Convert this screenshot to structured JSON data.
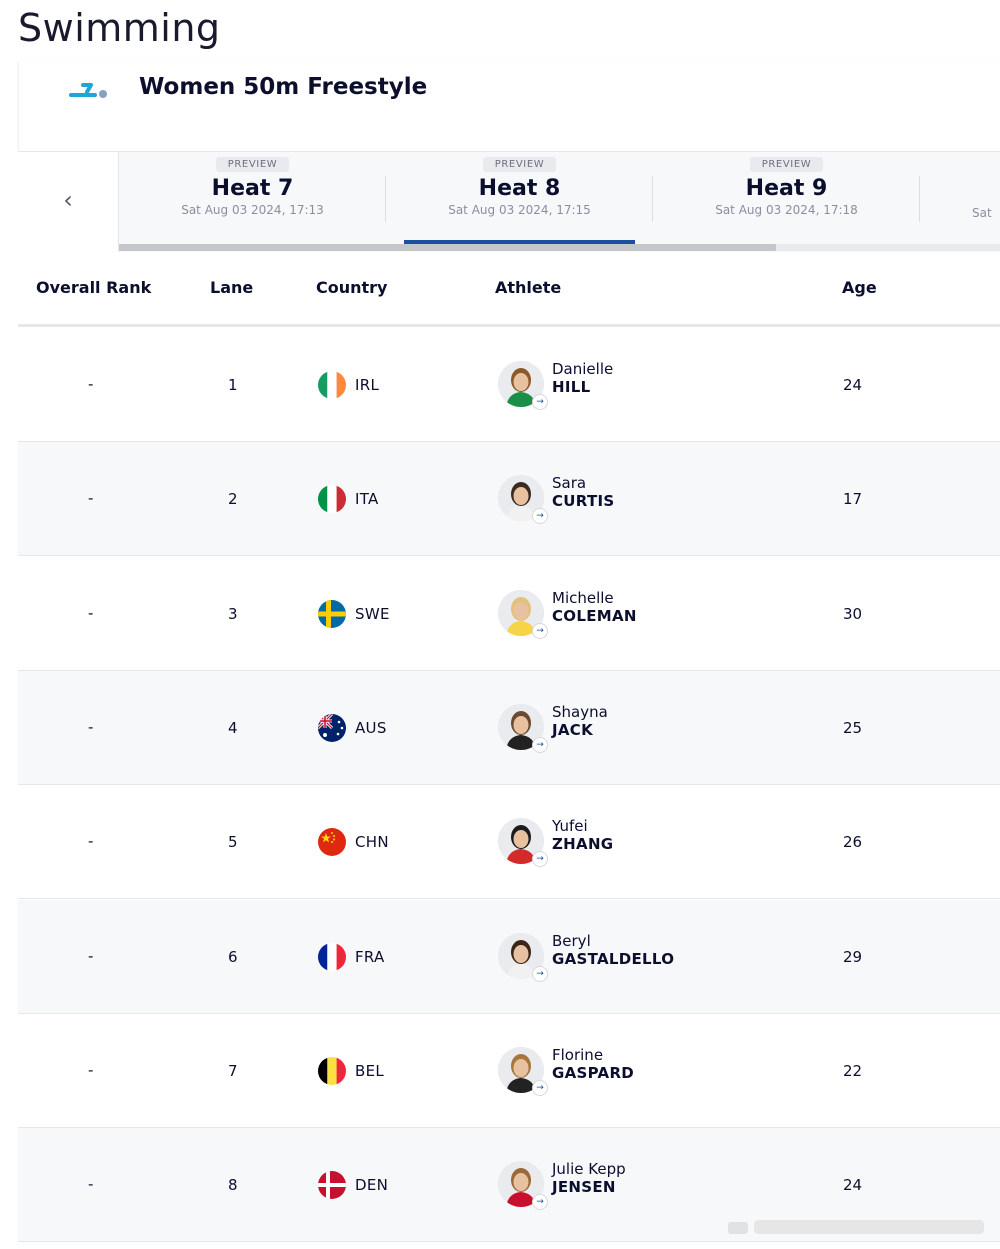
{
  "page": {
    "title": "Swimming"
  },
  "event": {
    "name": "Women 50m Freestyle",
    "icon": "swimming-icon"
  },
  "heats": {
    "prev_icon": "chevron-left-icon",
    "items": [
      {
        "badge": "PREVIEW",
        "name": "Heat 7",
        "date": "Sat Aug 03 2024, 17:13"
      },
      {
        "badge": "PREVIEW",
        "name": "Heat 8",
        "date": "Sat Aug 03 2024, 17:15",
        "active": true
      },
      {
        "badge": "PREVIEW",
        "name": "Heat 9",
        "date": "Sat Aug 03 2024, 17:18"
      },
      {
        "badge": "",
        "name": "",
        "date": "Sat"
      }
    ],
    "scroll_fraction": 0.73
  },
  "table": {
    "headers": {
      "rank": "Overall Rank",
      "lane": "Lane",
      "country": "Country",
      "athlete": "Athlete",
      "age": "Age"
    },
    "rows": [
      {
        "rank": "-",
        "lane": "1",
        "country": "IRL",
        "flag": "ireland",
        "first": "Danielle",
        "last": "HILL",
        "age": "24"
      },
      {
        "rank": "-",
        "lane": "2",
        "country": "ITA",
        "flag": "italy",
        "first": "Sara",
        "last": "CURTIS",
        "age": "17"
      },
      {
        "rank": "-",
        "lane": "3",
        "country": "SWE",
        "flag": "sweden",
        "first": "Michelle",
        "last": "COLEMAN",
        "age": "30"
      },
      {
        "rank": "-",
        "lane": "4",
        "country": "AUS",
        "flag": "australia",
        "first": "Shayna",
        "last": "JACK",
        "age": "25"
      },
      {
        "rank": "-",
        "lane": "5",
        "country": "CHN",
        "flag": "china",
        "first": "Yufei",
        "last": "ZHANG",
        "age": "26"
      },
      {
        "rank": "-",
        "lane": "6",
        "country": "FRA",
        "flag": "france",
        "first": "Beryl",
        "last": "GASTALDELLO",
        "age": "29"
      },
      {
        "rank": "-",
        "lane": "7",
        "country": "BEL",
        "flag": "belgium",
        "first": "Florine",
        "last": "GASPARD",
        "age": "22"
      },
      {
        "rank": "-",
        "lane": "8",
        "country": "DEN",
        "flag": "denmark",
        "first": "Julie Kepp",
        "last": "JENSEN",
        "age": "24"
      }
    ]
  },
  "colors": {
    "accent": "#1b4fa0",
    "icon": "#1ea7d6",
    "text": "#0b0f2d"
  }
}
